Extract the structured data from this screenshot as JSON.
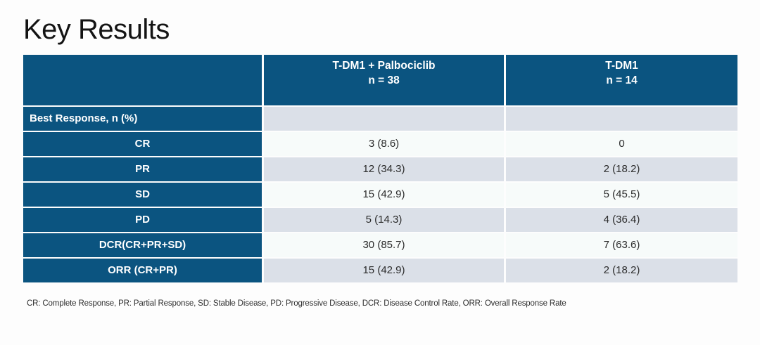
{
  "title": "Key Results",
  "table": {
    "columns": [
      {
        "label": "",
        "sub": ""
      },
      {
        "label": "T-DM1 + Palbociclib",
        "sub": "n = 38"
      },
      {
        "label": "T-DM1",
        "sub": "n = 14"
      }
    ],
    "section_row": {
      "label": "Best Response, n (%)",
      "col1": "",
      "col2": ""
    },
    "rows": [
      {
        "label": "CR",
        "col1": "3 (8.6)",
        "col2": "0"
      },
      {
        "label": "PR",
        "col1": "12 (34.3)",
        "col2": "2 (18.2)"
      },
      {
        "label": "SD",
        "col1": "15 (42.9)",
        "col2": "5 (45.5)"
      },
      {
        "label": "PD",
        "col1": "5 (14.3)",
        "col2": "4 (36.4)"
      },
      {
        "label": "DCR(CR+PR+SD)",
        "col1": "30 (85.7)",
        "col2": "7 (63.6)"
      },
      {
        "label": "ORR (CR+PR)",
        "col1": "15 (42.9)",
        "col2": "2 (18.2)"
      }
    ]
  },
  "footnote": "CR: Complete Response, PR: Partial Response, SD: Stable Disease, PD: Progressive Disease, DCR: Disease Control Rate, ORR: Overall Response Rate",
  "colors": {
    "header_blue": "#0b5480",
    "row_light": "#f7fbfa",
    "row_gray": "#dbe0e8",
    "header_text": "#ffffff",
    "body_text": "#2b2b2b",
    "background": "#fdfdfd"
  }
}
